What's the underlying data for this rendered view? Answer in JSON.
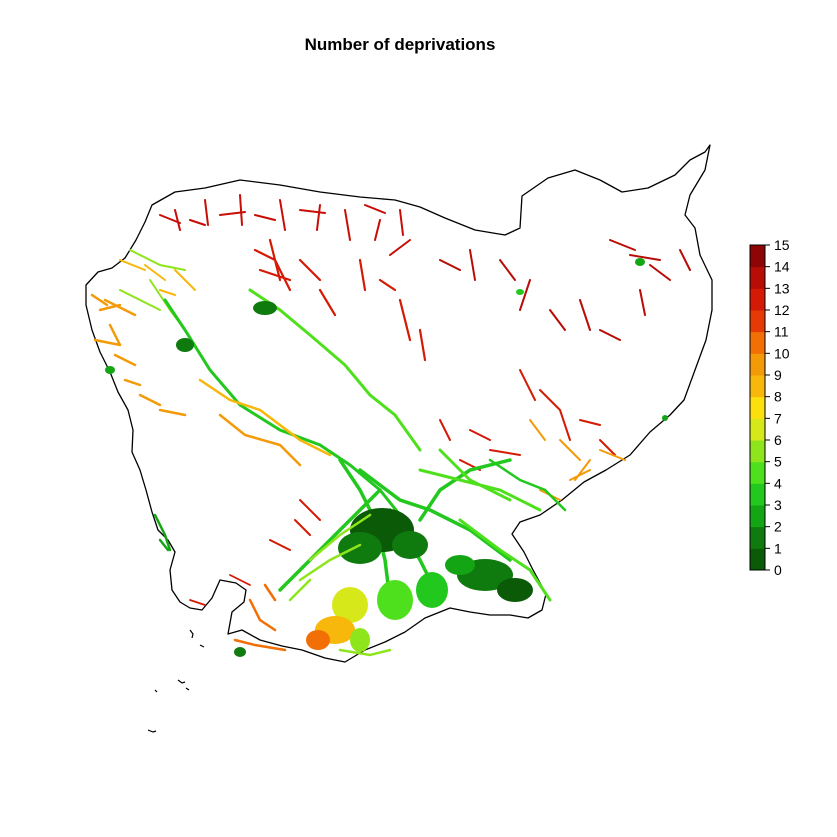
{
  "title": "Number of deprivations",
  "legend": {
    "min": 0,
    "max": 15,
    "ticks": [
      "0",
      "1",
      "2",
      "3",
      "4",
      "5",
      "6",
      "7",
      "8",
      "9",
      "10",
      "11",
      "12",
      "13",
      "14",
      "15"
    ],
    "colors": [
      "#0b5a08",
      "#0f7a0e",
      "#14a514",
      "#22c81e",
      "#4fe01d",
      "#8fe51c",
      "#d7e81a",
      "#fbe00e",
      "#f7b70b",
      "#f39a08",
      "#f26f06",
      "#e53a05",
      "#d41a05",
      "#b80d06",
      "#8e0505"
    ]
  },
  "colors": {
    "border": "#000000",
    "background": "#ffffff"
  }
}
